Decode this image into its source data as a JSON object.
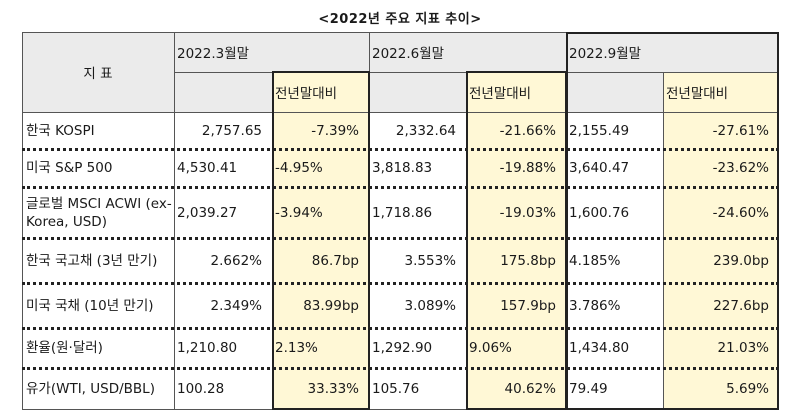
{
  "title": "<2022년 주요 지표 추이>",
  "header": {
    "indicator": "지 표",
    "periods": [
      "2022.3월말",
      "2022.6월말",
      "2022.9월말"
    ],
    "change_label": "전년말대비"
  },
  "rows": [
    {
      "label": "한국 KOSPI",
      "values": [
        "2,757.65",
        "2,332.64",
        "2,155.49"
      ],
      "changes": [
        "-7.39%",
        "-21.66%",
        "-27.61%"
      ]
    },
    {
      "label": "미국 S&P 500",
      "values": [
        "4,530.41",
        "3,818.83",
        "3,640.47"
      ],
      "changes": [
        "-4.95%",
        "-19.88%",
        "-23.62%"
      ]
    },
    {
      "label": "글로벌 MSCI ACWI (ex-Korea, USD)",
      "values": [
        "2,039.27",
        "1,718.86",
        "1,600.76"
      ],
      "changes": [
        "-3.94%",
        "-19.03%",
        "-24.60%"
      ]
    },
    {
      "label": "한국 국고채 (3년 만기)",
      "values": [
        "2.662%",
        "3.553%",
        "4.185%"
      ],
      "changes": [
        "86.7bp",
        "175.8bp",
        "239.0bp"
      ]
    },
    {
      "label": "미국 국채 (10년 만기)",
      "values": [
        "2.349%",
        "3.089%",
        "3.786%"
      ],
      "changes": [
        "83.99bp",
        "157.9bp",
        "227.6bp"
      ]
    },
    {
      "label": "환율(원·달러)",
      "values": [
        "1,210.80",
        "1,292.90",
        "1,434.80"
      ],
      "changes": [
        "2.13%",
        "9.06%",
        "21.03%"
      ]
    },
    {
      "label": "유가(WTI, USD/BBL)",
      "values": [
        "100.28",
        "105.76",
        "79.49"
      ],
      "changes": [
        "33.33%",
        "40.62%",
        "5.69%"
      ]
    }
  ]
}
